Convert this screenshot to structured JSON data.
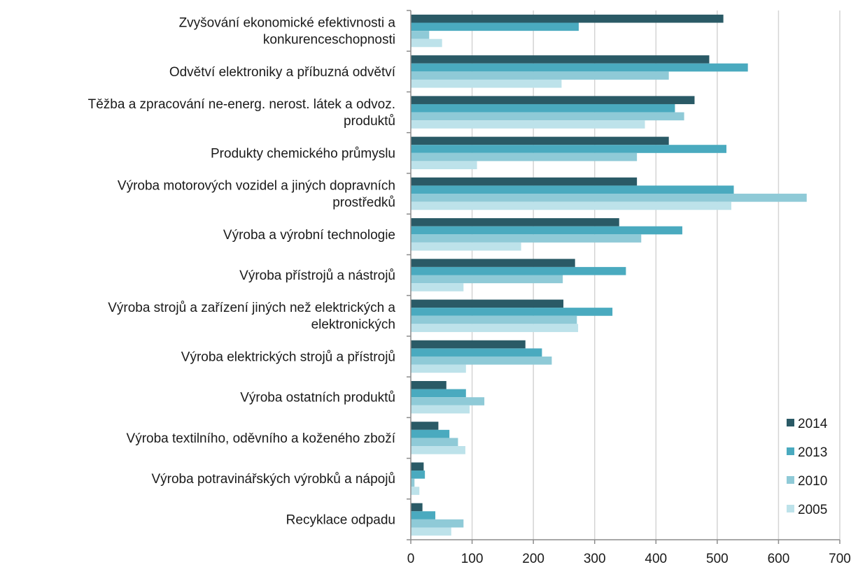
{
  "chart_data": {
    "type": "bar",
    "orientation": "horizontal",
    "categories": [
      [
        "Zvyšování ekonomické efektivnosti a",
        "konkurenceschopnosti"
      ],
      [
        "Odvětví elektroniky a příbuzná odvětví"
      ],
      [
        "Těžba a zpracování ne-energ. nerost. látek a odvoz.",
        "produktů"
      ],
      [
        "Produkty chemického průmyslu"
      ],
      [
        "Výroba motorových vozidel a jiných dopravních",
        "prostředků"
      ],
      [
        "Výroba a výrobní technologie"
      ],
      [
        "Výroba přístrojů a nástrojů"
      ],
      [
        "Výroba strojů a zařízení jiných než elektrických a",
        "elektronických"
      ],
      [
        "Výroba elektrických strojů a přístrojů"
      ],
      [
        "Výroba ostatních produktů"
      ],
      [
        "Výroba textilního, oděvního a koženého zboží"
      ],
      [
        "Výroba potravinářských výrobků a nápojů"
      ],
      [
        "Recyklace odpadu"
      ]
    ],
    "series": [
      {
        "name": "2014",
        "color": "#2a5a66",
        "values": [
          510,
          487,
          463,
          421,
          369,
          340,
          268,
          249,
          187,
          58,
          45,
          21,
          19
        ]
      },
      {
        "name": "2013",
        "color": "#4aaabf",
        "values": [
          274,
          550,
          431,
          515,
          527,
          443,
          351,
          329,
          214,
          90,
          63,
          23,
          40
        ]
      },
      {
        "name": "2010",
        "color": "#8fcad7",
        "values": [
          30,
          421,
          446,
          369,
          646,
          376,
          248,
          271,
          230,
          120,
          77,
          6,
          86
        ]
      },
      {
        "name": "2005",
        "color": "#bde2ea",
        "values": [
          51,
          246,
          382,
          108,
          523,
          180,
          86,
          273,
          90,
          96,
          89,
          14,
          66
        ]
      }
    ],
    "xlim": [
      0,
      700
    ],
    "xticks": [
      0,
      100,
      200,
      300,
      400,
      500,
      600,
      700
    ],
    "grid": "vertical",
    "legend_position": "bottom-right",
    "title": "",
    "xlabel": "",
    "ylabel": ""
  }
}
